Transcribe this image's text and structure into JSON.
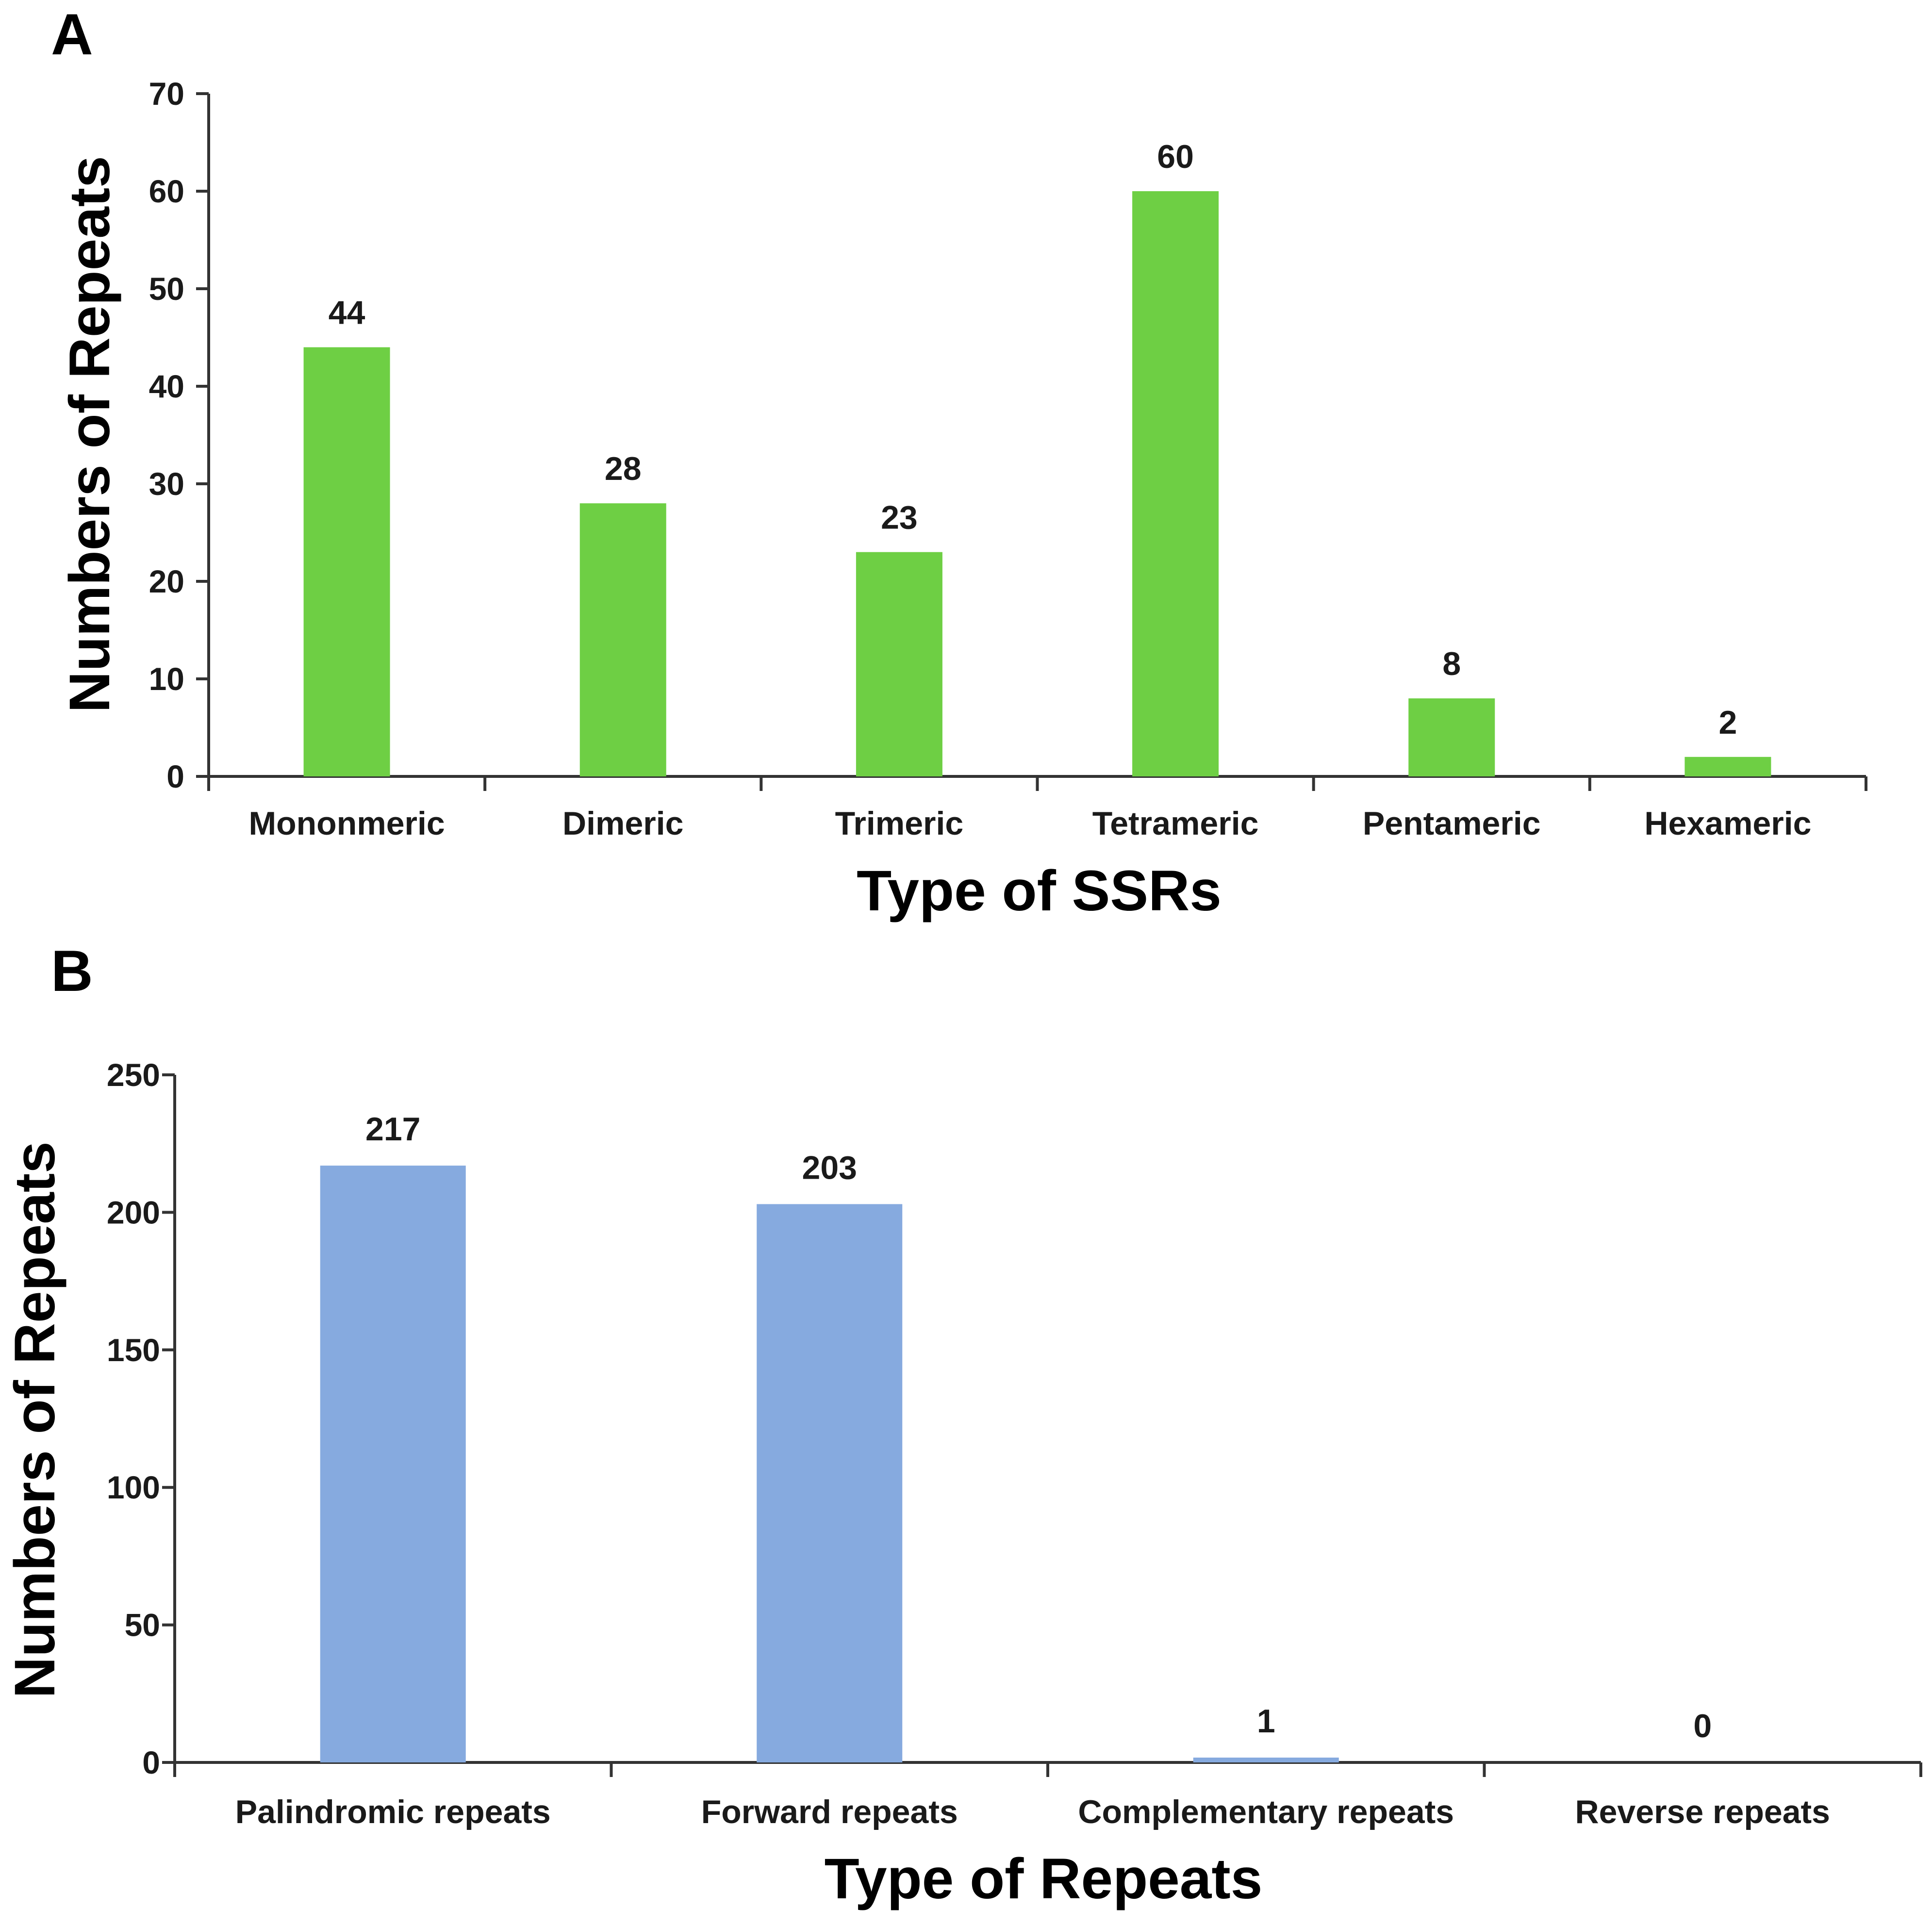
{
  "chart_data": [
    {
      "panel": "A",
      "type": "bar",
      "xlabel": "Type of SSRs",
      "ylabel": "Numbers of Repeats",
      "ylim": [
        0,
        70
      ],
      "yticks": [
        0,
        10,
        20,
        30,
        40,
        50,
        60,
        70
      ],
      "categories": [
        "Mononmeric",
        "Dimeric",
        "Trimeric",
        "Tetrameric",
        "Pentameric",
        "Hexameric"
      ],
      "values": [
        44,
        28,
        23,
        60,
        8,
        2
      ],
      "data_labels": [
        "44",
        "28",
        "23",
        "60",
        "8",
        "2"
      ],
      "color": "#6ecf44",
      "grid": false,
      "legend": "none"
    },
    {
      "panel": "B",
      "type": "bar",
      "xlabel": "Type of Repeats",
      "ylabel": "Numbers of Repeats",
      "ylim": [
        0,
        250
      ],
      "yticks": [
        0,
        50,
        100,
        150,
        200,
        250
      ],
      "categories": [
        "Palindromic repeats",
        "Forward repeats",
        "Complementary repeats",
        "Reverse repeats"
      ],
      "values": [
        217,
        203,
        1,
        0
      ],
      "data_labels": [
        "217",
        "203",
        "1",
        "0"
      ],
      "color": "#86aadf",
      "grid": false,
      "legend": "none"
    }
  ]
}
